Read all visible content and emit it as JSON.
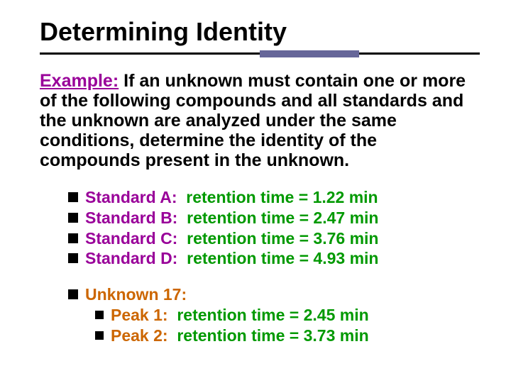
{
  "colors": {
    "background": "#ffffff",
    "text": "#000000",
    "accent_bar": "#666699",
    "example_label": "#990099",
    "standard_label": "#990099",
    "standard_value": "#009900",
    "unknown_label": "#cc6600",
    "peak_label": "#cc6600",
    "peak_value": "#009900"
  },
  "typography": {
    "font_family": "Comic Sans MS",
    "title_fontsize_pt": 27,
    "body_fontsize_pt": 19,
    "list_fontsize_pt": 17,
    "all_bold": true
  },
  "title": "Determining Identity",
  "example": {
    "label": "Example:",
    "text": "  If an unknown must contain one or more of the following compounds and all standards and the unknown are analyzed under the same conditions, determine the identity of the compounds present in the unknown."
  },
  "standards": [
    {
      "label": "Standard A:  ",
      "value": "retention time = 1.22 min"
    },
    {
      "label": "Standard B:  ",
      "value": "retention time = 2.47 min"
    },
    {
      "label": "Standard C:  ",
      "value": "retention time = 3.76 min"
    },
    {
      "label": "Standard D:  ",
      "value": "retention time = 4.93 min"
    }
  ],
  "unknown": {
    "label": "Unknown 17:",
    "peaks": [
      {
        "label": "Peak 1:  ",
        "value": "retention time = 2.45 min"
      },
      {
        "label": "Peak 2:  ",
        "value": "retention time = 3.73 min"
      }
    ]
  }
}
